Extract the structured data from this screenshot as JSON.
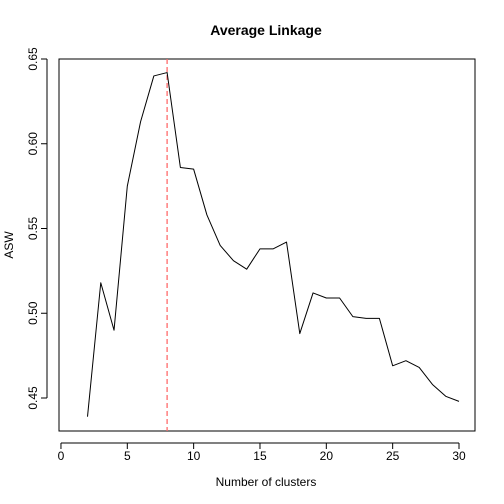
{
  "chart_data": {
    "type": "line",
    "title": "Average Linkage",
    "xlabel": "Number of clusters",
    "ylabel": "ASW",
    "xlim": [
      0,
      30
    ],
    "ylim": [
      0.43,
      0.65
    ],
    "xticks": [
      0,
      5,
      10,
      15,
      20,
      25,
      30
    ],
    "yticks": [
      0.45,
      0.5,
      0.55,
      0.6,
      0.65
    ],
    "ytick_labels": [
      "0.45",
      "0.50",
      "0.55",
      "0.60",
      "0.65"
    ],
    "grid": false,
    "legend": "none",
    "series": [
      {
        "color": "#000000",
        "x": [
          2,
          3,
          4,
          5,
          6,
          7,
          8,
          9,
          10,
          11,
          12,
          13,
          14,
          15,
          16,
          17,
          18,
          19,
          20,
          21,
          22,
          23,
          24,
          25,
          26,
          27,
          28,
          29,
          30
        ],
        "values": [
          0.439,
          0.518,
          0.49,
          0.575,
          0.613,
          0.64,
          0.642,
          0.586,
          0.585,
          0.558,
          0.54,
          0.531,
          0.526,
          0.538,
          0.538,
          0.542,
          0.488,
          0.512,
          0.509,
          0.509,
          0.498,
          0.497,
          0.497,
          0.469,
          0.472,
          0.468,
          0.458,
          0.451,
          0.448
        ]
      }
    ],
    "vline": {
      "x": 8,
      "color": "#ff6b6b",
      "style": "dashed"
    }
  }
}
